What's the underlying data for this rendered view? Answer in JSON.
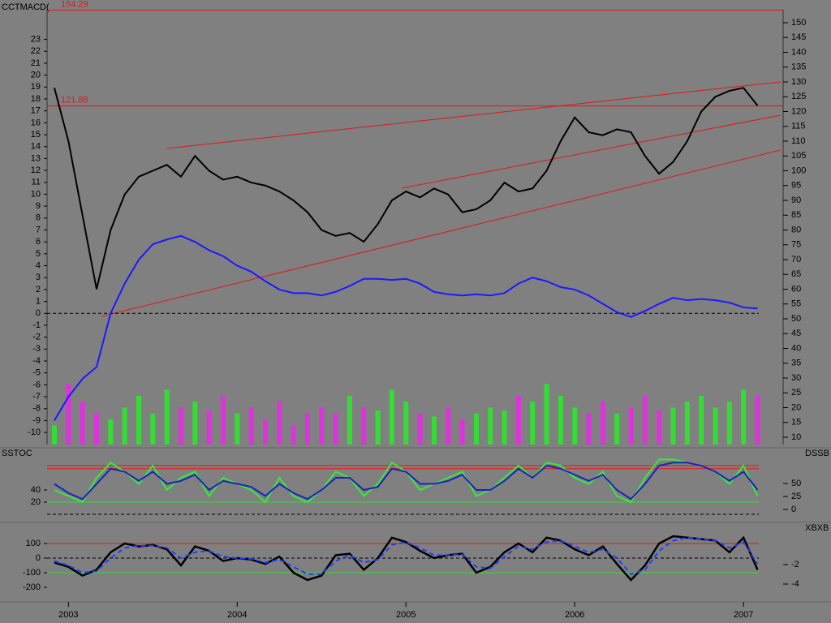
{
  "chart_data": [
    {
      "type": "line",
      "title": "CCTMACD(",
      "hlines": [
        154.29,
        121.88
      ],
      "hline_color": "#e01818",
      "ylim": [
        -10.4,
        24.4
      ],
      "yticks": [
        -10,
        -9,
        -8,
        -7,
        -6,
        -5,
        -4,
        -3,
        -2,
        -1,
        0,
        1,
        2,
        3,
        4,
        5,
        6,
        7,
        8,
        9,
        10,
        11,
        12,
        13,
        14,
        15,
        16,
        17,
        18,
        19,
        20,
        21,
        22,
        23
      ],
      "y2lim": [
        10,
        150
      ],
      "y2ticks": [
        10,
        15,
        20,
        25,
        30,
        35,
        40,
        45,
        50,
        55,
        60,
        65,
        70,
        75,
        80,
        85,
        90,
        95,
        100,
        105,
        110,
        115,
        120,
        125,
        130,
        135,
        140,
        145,
        150
      ],
      "series": [
        {
          "kind": "bar",
          "axis": "y2",
          "up_color": "#33dd33",
          "down_color": "#dd33dd",
          "values": [
            14,
            28,
            22,
            18,
            16,
            20,
            24,
            18,
            26,
            20,
            22,
            19,
            24,
            18,
            20,
            16,
            22,
            14,
            18,
            20,
            18,
            24,
            20,
            19,
            26,
            22,
            18,
            17,
            20,
            16,
            18,
            20,
            19,
            24,
            22,
            28,
            24,
            20,
            18,
            22,
            18,
            20,
            24,
            19,
            20,
            22,
            24,
            20,
            22,
            26,
            24
          ]
        },
        {
          "kind": "line",
          "axis": "y2",
          "color": "#000000",
          "values": [
            128,
            110,
            85,
            60,
            80,
            92,
            98,
            100,
            102,
            98,
            105,
            100,
            97,
            98,
            96,
            95,
            93,
            90,
            86,
            80,
            78,
            79,
            76,
            82,
            90,
            93,
            91,
            94,
            92,
            86,
            87,
            90,
            96,
            93,
            94,
            100,
            110,
            118,
            113,
            112,
            114,
            113,
            105,
            99,
            103,
            110,
            120,
            125,
            127,
            128,
            122
          ]
        },
        {
          "kind": "line",
          "axis": "y",
          "color": "#1a1aff",
          "values": [
            -9,
            -7,
            -5.5,
            -4.5,
            0,
            2.5,
            4.5,
            5.8,
            6.2,
            6.5,
            6.0,
            5.3,
            4.8,
            4.0,
            3.5,
            2.7,
            2.0,
            1.7,
            1.7,
            1.5,
            1.8,
            2.3,
            2.9,
            2.9,
            2.8,
            2.9,
            2.5,
            1.8,
            1.6,
            1.5,
            1.6,
            1.5,
            1.7,
            2.5,
            3.0,
            2.7,
            2.2,
            2.0,
            1.5,
            0.8,
            0.1,
            -0.3,
            0.2,
            0.8,
            1.3,
            1.1,
            1.2,
            1.1,
            0.9,
            0.5,
            0.4
          ]
        }
      ]
    },
    {
      "type": "line",
      "title": "SSTOC",
      "y2_title": "DSSB",
      "ylim": [
        -8,
        98.7
      ],
      "yticks": [
        20,
        40
      ],
      "y2lim": [
        -18.75,
        106.25
      ],
      "y2ticks": [
        0,
        25,
        50
      ],
      "levels": [
        {
          "value": 80,
          "color": "#e01818"
        },
        {
          "value": 75,
          "color": "#e01818"
        },
        {
          "value": 20,
          "color": "#33dd33"
        }
      ],
      "series": [
        {
          "kind": "line",
          "axis": "y",
          "color": "#33ee33",
          "values": [
            40,
            30,
            20,
            60,
            85,
            70,
            50,
            80,
            40,
            60,
            70,
            30,
            60,
            50,
            40,
            20,
            60,
            30,
            20,
            40,
            70,
            60,
            30,
            50,
            85,
            70,
            40,
            50,
            60,
            70,
            30,
            40,
            60,
            80,
            60,
            85,
            80,
            60,
            50,
            70,
            30,
            20,
            60,
            90,
            90,
            85,
            80,
            70,
            50,
            80,
            30
          ]
        },
        {
          "kind": "line",
          "axis": "y",
          "color": "#2020c0",
          "values": [
            50,
            35,
            25,
            50,
            75,
            70,
            55,
            70,
            50,
            55,
            65,
            40,
            55,
            50,
            45,
            30,
            50,
            35,
            25,
            40,
            60,
            60,
            40,
            45,
            75,
            70,
            50,
            50,
            55,
            65,
            40,
            40,
            55,
            75,
            60,
            80,
            75,
            65,
            55,
            65,
            40,
            25,
            50,
            80,
            85,
            85,
            80,
            70,
            55,
            70,
            40
          ]
        }
      ]
    },
    {
      "type": "line",
      "y2_title": "XBXB",
      "ylim": [
        -261,
        211
      ],
      "yticks": [
        -200,
        -100,
        0,
        100
      ],
      "y2lim": [
        -5.25,
        1.83
      ],
      "y2ticks": [
        -4,
        -2
      ],
      "levels": [
        {
          "value": 100,
          "color": "#e01818"
        },
        {
          "value": -100,
          "color": "#33dd33"
        }
      ],
      "categories": [
        null,
        "2003",
        null,
        null,
        null,
        null,
        null,
        null,
        null,
        null,
        null,
        null,
        null,
        "2004",
        null,
        null,
        null,
        null,
        null,
        null,
        null,
        null,
        null,
        null,
        null,
        "2005",
        null,
        null,
        null,
        null,
        null,
        null,
        null,
        null,
        null,
        null,
        null,
        "2006",
        null,
        null,
        null,
        null,
        null,
        null,
        null,
        null,
        null,
        null,
        null,
        "2007",
        null
      ],
      "series": [
        {
          "kind": "line",
          "axis": "y",
          "color": "#000000",
          "values": [
            -30,
            -60,
            -120,
            -80,
            40,
            100,
            80,
            90,
            60,
            -50,
            80,
            50,
            -20,
            0,
            -10,
            -40,
            10,
            -100,
            -150,
            -120,
            20,
            30,
            -80,
            0,
            140,
            110,
            50,
            0,
            20,
            30,
            -100,
            -60,
            40,
            100,
            40,
            140,
            120,
            60,
            20,
            80,
            -40,
            -150,
            -50,
            100,
            150,
            140,
            130,
            120,
            40,
            140,
            -80
          ]
        },
        {
          "kind": "line",
          "axis": "y",
          "color": "#2040ff",
          "dash": true,
          "values": [
            -20,
            -50,
            -100,
            -90,
            0,
            70,
            85,
            85,
            70,
            0,
            40,
            50,
            10,
            0,
            -5,
            -30,
            -10,
            -60,
            -110,
            -110,
            -20,
            20,
            -30,
            -10,
            90,
            110,
            70,
            20,
            20,
            25,
            -60,
            -70,
            10,
            80,
            60,
            110,
            120,
            80,
            40,
            60,
            0,
            -110,
            -80,
            50,
            120,
            140,
            130,
            120,
            70,
            110,
            -40
          ]
        }
      ]
    }
  ]
}
